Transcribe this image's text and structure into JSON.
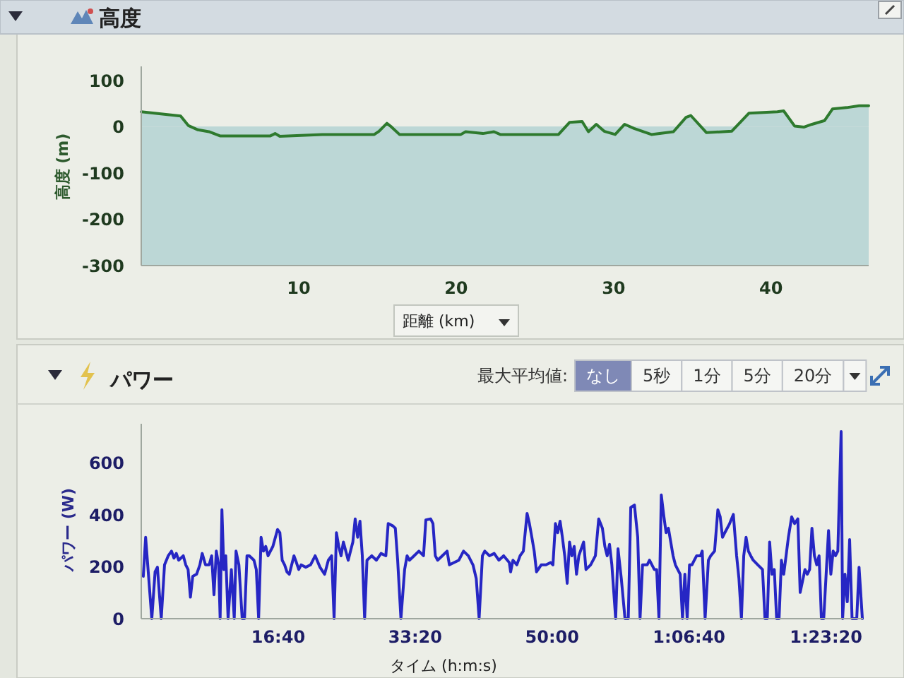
{
  "chart_data": [
    {
      "type": "area",
      "title": "高度",
      "ylabel": "高度 (m)",
      "xlabel": "距離 (km)",
      "color": "#2e7a2e",
      "x": [
        0,
        2.5,
        3.0,
        3.6,
        4.3,
        5.0,
        8.2,
        8.5,
        8.8,
        11.5,
        14.8,
        15.1,
        15.6,
        15.9,
        16.4,
        20.3,
        20.6,
        21.7,
        22.4,
        22.8,
        26.5,
        27.2,
        28.0,
        28.4,
        28.9,
        29.4,
        30.1,
        30.7,
        31.3,
        32.4,
        33.8,
        34.6,
        34.9,
        35.9,
        37.5,
        38.6,
        40.4,
        40.8,
        41.5,
        42.1,
        42.6,
        43.4,
        43.9,
        44.8,
        45.6,
        46.2
      ],
      "values": [
        32,
        23,
        2,
        -7,
        -11,
        -20,
        -20,
        -15,
        -21,
        -17,
        -17,
        -10,
        7,
        -1,
        -17,
        -17,
        -11,
        -15,
        -11,
        -17,
        -17,
        9,
        11,
        -11,
        5,
        -10,
        -17,
        5,
        -4,
        -17,
        -11,
        20,
        24,
        -13,
        -10,
        29,
        32,
        34,
        1,
        -1,
        5,
        13,
        38,
        41,
        45,
        45
      ],
      "bands": [
        {
          "axis": "y",
          "from": -300,
          "to": 0,
          "color": "#bcd7d6"
        }
      ],
      "xlim": [
        0,
        46.2
      ],
      "ylim": [
        -300,
        130
      ],
      "xticks": [
        10,
        20,
        30,
        40
      ],
      "yticks": [
        -300,
        -200,
        -100,
        0,
        100
      ]
    },
    {
      "type": "line",
      "title": "パワー",
      "ylabel": "パワー (W)",
      "xlabel": "タイム (h:m:s)",
      "color": "#2626c4",
      "x": [
        15,
        32,
        77,
        101,
        118,
        146,
        170,
        197,
        221,
        239,
        256,
        273,
        307,
        325,
        342,
        359,
        376,
        404,
        428,
        445,
        469,
        496,
        514,
        531,
        548,
        565,
        576,
        589,
        603,
        617,
        634,
        658,
        679,
        692,
        713,
        737,
        754,
        772,
        789,
        823,
        840,
        857,
        875,
        892,
        909,
        926,
        943,
        961,
        995,
        1012,
        1029,
        1047,
        1064,
        1081,
        1115,
        1133,
        1150,
        1167,
        1201,
        1236,
        1270,
        1305,
        1339,
        1366,
        1390,
        1408,
        1425,
        1442,
        1459,
        1476,
        1511,
        1528,
        1545,
        1562,
        1580,
        1597,
        1614,
        1631,
        1648,
        1683,
        1717,
        1751,
        1786,
        1803,
        1837,
        1855,
        1872,
        1896,
        1923,
        1941,
        1958,
        1992,
        2027,
        2061,
        2078,
        2113,
        2130,
        2147,
        2164,
        2198,
        2233,
        2250,
        2284,
        2319,
        2353,
        2388,
        2422,
        2446,
        2467,
        2491,
        2508,
        2542,
        2577,
        2611,
        2646,
        2687,
        2697,
        2714,
        2742,
        2766,
        2790,
        2817,
        2834,
        2852,
        2869,
        2886,
        2920,
        2955,
        2989,
        3006,
        3024,
        3041,
        3058,
        3075,
        3092,
        3110,
        3127,
        3144,
        3161,
        3178,
        3195,
        3230,
        3247,
        3281,
        3316,
        3340,
        3367,
        3385,
        3402,
        3419,
        3436,
        3464,
        3481,
        3505,
        3532,
        3556,
        3574,
        3601,
        3625,
        3642,
        3660,
        3694,
        3711,
        3746,
        3763,
        3780,
        3797,
        3814,
        3832,
        3849,
        3866,
        3883,
        3900,
        3935,
        3952,
        3969,
        3986,
        4003,
        4021,
        4038,
        4055,
        4083,
        4096,
        4117,
        4141,
        4158,
        4186,
        4210,
        4227,
        4244,
        4261,
        4296,
        4323,
        4347,
        4364,
        4382,
        4399,
        4416,
        4433,
        4450,
        4468,
        4502,
        4536,
        4554,
        4571,
        4588,
        4605,
        4622,
        4639,
        4657,
        4674,
        4691,
        4708,
        4725,
        4749,
        4770,
        4794,
        4811,
        4846,
        4863,
        4880,
        4897,
        4915,
        4932,
        4949,
        4966,
        4983,
        5018,
        5035,
        5052,
        5069,
        5086,
        5110,
        5121,
        5138,
        5155,
        5172,
        5190,
        5224,
        5241,
        5265
      ],
      "values": [
        163,
        313,
        0,
        180,
        198,
        0,
        207,
        242,
        260,
        233,
        251,
        225,
        242,
        207,
        189,
        83,
        163,
        171,
        207,
        251,
        207,
        207,
        242,
        92,
        260,
        207,
        0,
        419,
        189,
        242,
        0,
        189,
        0,
        260,
        207,
        0,
        0,
        242,
        242,
        225,
        189,
        0,
        313,
        260,
        278,
        242,
        260,
        278,
        343,
        331,
        225,
        207,
        180,
        171,
        242,
        216,
        189,
        207,
        198,
        207,
        242,
        198,
        171,
        225,
        242,
        0,
        331,
        278,
        242,
        295,
        225,
        260,
        295,
        384,
        313,
        375,
        242,
        0,
        225,
        242,
        225,
        251,
        242,
        366,
        357,
        348,
        225,
        0,
        189,
        242,
        225,
        242,
        260,
        242,
        380,
        384,
        366,
        242,
        225,
        242,
        260,
        207,
        216,
        225,
        260,
        242,
        207,
        154,
        0,
        242,
        260,
        242,
        251,
        225,
        242,
        216,
        180,
        225,
        207,
        242,
        260,
        405,
        366,
        313,
        260,
        180,
        207,
        207,
        216,
        207,
        366,
        331,
        375,
        313,
        242,
        136,
        295,
        242,
        278,
        171,
        242,
        295,
        189,
        207,
        242,
        384,
        348,
        278,
        242,
        286,
        207,
        0,
        269,
        154,
        0,
        0,
        428,
        437,
        313,
        0,
        207,
        207,
        225,
        189,
        189,
        0,
        476,
        401,
        331,
        348,
        295,
        242,
        207,
        171,
        0,
        171,
        0,
        207,
        207,
        225,
        242,
        242,
        260,
        0,
        225,
        242,
        260,
        419,
        392,
        313,
        331,
        366,
        401,
        242,
        154,
        0,
        242,
        313,
        260,
        242,
        225,
        207,
        189,
        0,
        0,
        295,
        171,
        189,
        0,
        0,
        225,
        171,
        242,
        313,
        392,
        366,
        384,
        101,
        189,
        171,
        189,
        348,
        242,
        207,
        242,
        0,
        0,
        339,
        171,
        260,
        242,
        260,
        720,
        0,
        171,
        65,
        304,
        0,
        0,
        198,
        0
      ],
      "xlim": [
        0,
        5270
      ],
      "ylim": [
        0,
        750
      ],
      "yticks": [
        0,
        200,
        400,
        600
      ],
      "xticks": [
        {
          "value": 1000,
          "label": "16:40"
        },
        {
          "value": 2000,
          "label": "33:20"
        },
        {
          "value": 3000,
          "label": "50:00"
        },
        {
          "value": 4000,
          "label": "1:06:40"
        },
        {
          "value": 5000,
          "label": "1:23:20"
        }
      ],
      "annotations": [
        "最大平均値:",
        "なし",
        "5秒",
        "1分",
        "5分",
        "20分"
      ]
    }
  ]
}
